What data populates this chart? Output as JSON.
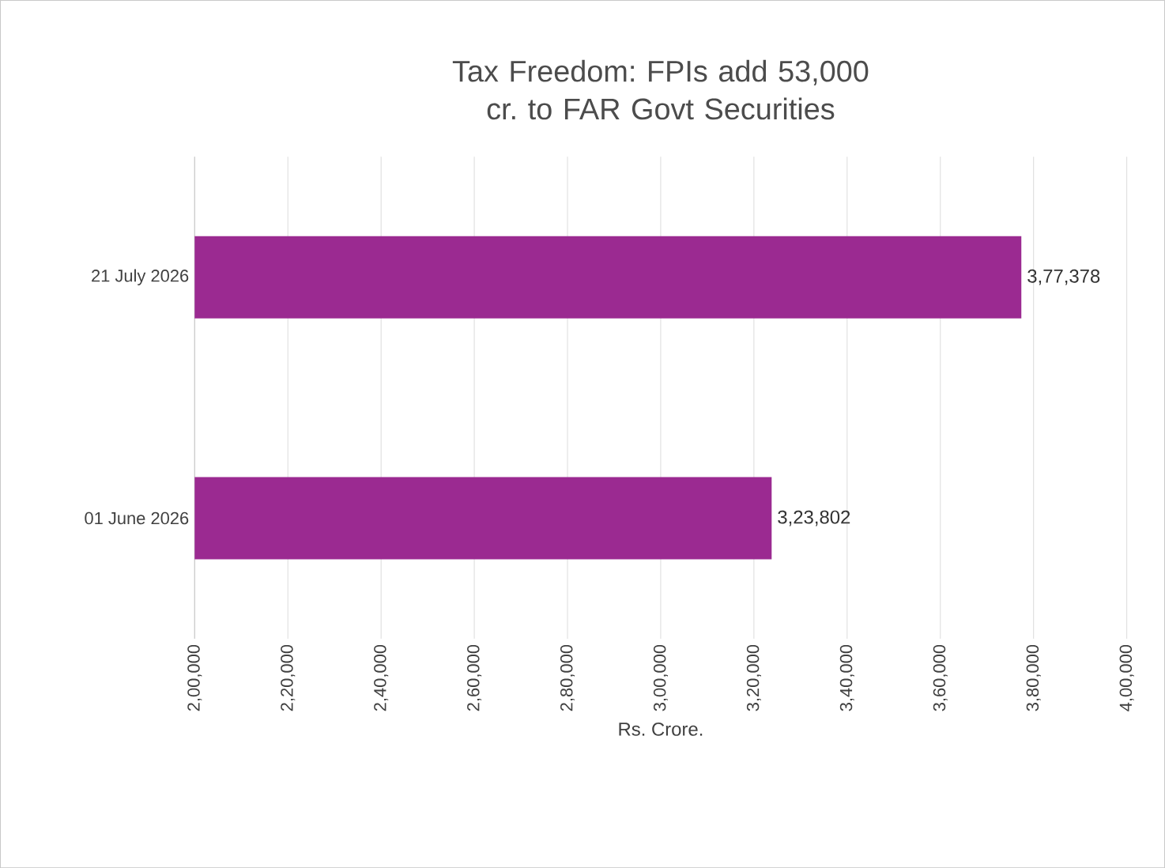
{
  "chart_data": {
    "type": "bar",
    "orientation": "horizontal",
    "title": "Tax Freedom: FPIs add 53,000 cr. to FAR Govt Securities",
    "xlabel": "Rs. Crore.",
    "categories": [
      "21 July 2026",
      "01 June 2026"
    ],
    "values": [
      377378,
      323802
    ],
    "value_labels": [
      "3,77,378",
      "3,23,802"
    ],
    "color": "#9b2a91",
    "xlim": [
      200000,
      400000
    ],
    "xticks": [
      {
        "value": 200000,
        "label": "2,00,000"
      },
      {
        "value": 220000,
        "label": "2,20,000"
      },
      {
        "value": 240000,
        "label": "2,40,000"
      },
      {
        "value": 260000,
        "label": "2,60,000"
      },
      {
        "value": 280000,
        "label": "2,80,000"
      },
      {
        "value": 300000,
        "label": "3,00,000"
      },
      {
        "value": 320000,
        "label": "3,20,000"
      },
      {
        "value": 340000,
        "label": "3,40,000"
      },
      {
        "value": 360000,
        "label": "3,60,000"
      },
      {
        "value": 380000,
        "label": "3,80,000"
      },
      {
        "value": 400000,
        "label": "4,00,000"
      }
    ],
    "grid": "x"
  }
}
